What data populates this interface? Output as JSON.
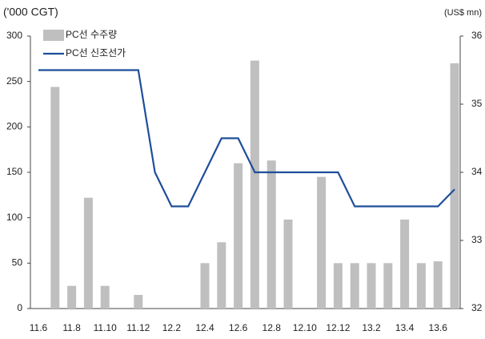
{
  "chart_data": {
    "type": "bar",
    "y_label": "('000 CGT)",
    "y2_label": "(US$ mn)",
    "categories": [
      "11.6",
      null,
      "11.8",
      null,
      "11.10",
      null,
      "11.12",
      null,
      "12.2",
      null,
      "12.4",
      null,
      "12.6",
      null,
      "12.8",
      null,
      "12.10",
      null,
      "12.12",
      null,
      "13.2",
      null,
      "13.4",
      null,
      "13.6",
      null
    ],
    "series": [
      {
        "name": "PC선 수주량",
        "type": "bar",
        "color": "#bfbfbf",
        "values": [
          0,
          244,
          25,
          122,
          25,
          0,
          15,
          0,
          0,
          0,
          50,
          73,
          160,
          273,
          163,
          98,
          0,
          145,
          50,
          50,
          50,
          50,
          98,
          50,
          52,
          270
        ]
      },
      {
        "name": "PC선 신조선가",
        "type": "line",
        "axis": "y2",
        "color": "#1f4e9a",
        "values": [
          35.5,
          35.5,
          35.5,
          35.5,
          35.5,
          35.5,
          35.5,
          34.0,
          33.5,
          33.5,
          34.0,
          34.5,
          34.5,
          34.0,
          34.0,
          34.0,
          34.0,
          34.0,
          34.0,
          33.5,
          33.5,
          33.5,
          33.5,
          33.5,
          33.5,
          33.75
        ]
      }
    ],
    "ylim": [
      0,
      300
    ],
    "yticks": [
      0,
      50,
      100,
      150,
      200,
      250,
      300
    ],
    "y2lim": [
      32,
      36
    ],
    "y2ticks": [
      32,
      33,
      34,
      35,
      36
    ],
    "legend": "upper left"
  }
}
